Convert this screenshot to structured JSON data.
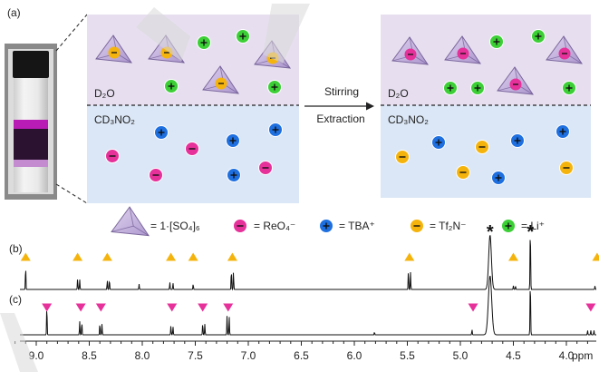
{
  "panel_labels": {
    "a": "(a)",
    "b": "(b)",
    "c": "(c)"
  },
  "phases": {
    "top_left": "D₂O",
    "bottom_left": "CD₃NO₂",
    "top_right": "D₂O",
    "bottom_right": "CD₃NO₂"
  },
  "process": {
    "line1": "Stirring",
    "line2": "Extraction"
  },
  "legend": {
    "cage": "= 1·[SO₄]₆",
    "perrhenate": "= ReO₄⁻",
    "tba": "= TBA⁺",
    "triflimide": "= Tf₂N⁻",
    "lithium": "= Li⁺"
  },
  "axis": {
    "unit": "ppm",
    "ticks": [
      "9.0",
      "8.5",
      "8.0",
      "7.5",
      "7.0",
      "6.5",
      "6.0",
      "5.5",
      "5.0",
      "4.5",
      "4.0"
    ]
  },
  "colors": {
    "top_phase": "#e7dff0",
    "bottom_phase": "#dbe7f6",
    "perrhenate": "#e6309a",
    "tba": "#1e6fe0",
    "triflimide": "#f5b40d",
    "lithium": "#3ccf36",
    "cage": "#9a80bf"
  },
  "markers": {
    "b": [
      9.1,
      8.61,
      8.33,
      7.73,
      7.52,
      7.15,
      5.48,
      4.5,
      3.71
    ],
    "c": [
      8.9,
      8.58,
      8.39,
      7.72,
      7.43,
      7.19,
      4.88,
      3.77
    ]
  },
  "solvent_peaks": [
    4.72,
    4.34
  ],
  "solvent_mark": "*"
}
